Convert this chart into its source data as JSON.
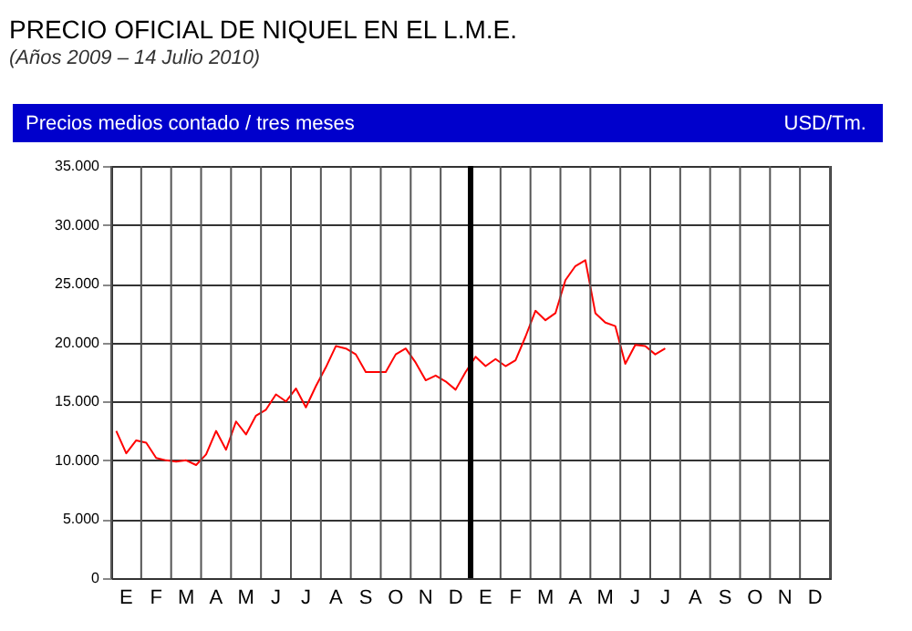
{
  "chart_data": {
    "type": "line",
    "title": "PRECIO OFICIAL DE NIQUEL EN EL L.M.E.",
    "subtitle": "(Años 2009 – 14 Julio 2010)",
    "annotations": [
      "Precios medios contado / tres meses"
    ],
    "ylabel": "USD/Tm.",
    "categories": [
      null,
      "E",
      null,
      null,
      "F",
      null,
      null,
      "M",
      null,
      null,
      "A",
      null,
      null,
      "M",
      null,
      null,
      "J",
      null,
      null,
      "J",
      null,
      null,
      "A",
      null,
      null,
      "S",
      null,
      null,
      "O",
      null,
      null,
      "N",
      null,
      null,
      "D",
      null,
      null,
      "E",
      null,
      null,
      "F",
      null,
      null,
      "M",
      null,
      null,
      "A",
      null,
      null,
      "M",
      null,
      null,
      "J",
      null,
      null,
      "J",
      null,
      null,
      "A",
      null,
      null,
      "S",
      null,
      null,
      "O",
      null,
      null,
      "N",
      null,
      null,
      "D",
      null
    ],
    "series": [
      {
        "color": "#ff0000",
        "values": [
          12500,
          10600,
          11700,
          11500,
          10200,
          10000,
          9900,
          10000,
          9600,
          10500,
          12500,
          10900,
          13300,
          12200,
          13800,
          14300,
          15600,
          15000,
          16100,
          14500,
          16300,
          17900,
          19700,
          19500,
          19000,
          17500,
          17500,
          17500,
          19000,
          19500,
          18300,
          16800,
          17200,
          16700,
          16000,
          17500,
          18800,
          18000,
          18600,
          18000,
          18500,
          20500,
          22700,
          21900,
          22500,
          25300,
          26500,
          27000,
          22500,
          21700,
          21400,
          18200,
          19800,
          19700,
          19000,
          19500,
          null,
          null,
          null,
          null,
          null,
          null,
          null,
          null,
          null,
          null,
          null,
          null,
          null,
          null,
          null,
          null
        ]
      }
    ],
    "ylim": [
      0,
      35000
    ],
    "yticks": [
      0,
      {
        "value": 5000,
        "label": "5.000"
      },
      {
        "value": 10000,
        "label": "10.000"
      },
      {
        "value": 15000,
        "label": "15.000"
      },
      {
        "value": 20000,
        "label": "20.000"
      },
      {
        "value": 25000,
        "label": "25.000"
      },
      {
        "value": 30000,
        "label": "30.000"
      },
      {
        "value": 35000,
        "label": "35.000"
      }
    ],
    "grid": true,
    "legend": false,
    "marker": "none",
    "line_style": "solid"
  }
}
